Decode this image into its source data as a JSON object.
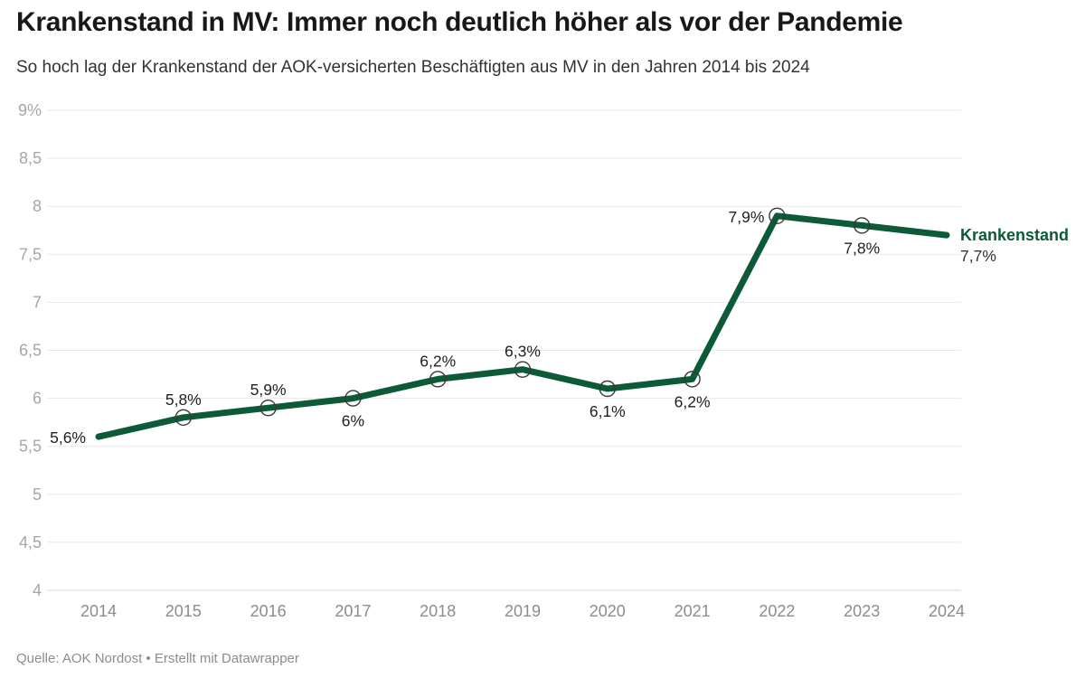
{
  "header": {
    "title": "Krankenstand in MV: Immer noch deutlich höher als vor der Pandemie",
    "subtitle": "So hoch lag der Krankenstand der AOK-versicherten Beschäftigten aus MV in den Jahren 2014 bis 2024"
  },
  "footer": {
    "source": "Quelle: AOK Nordost • Erstellt mit Datawrapper"
  },
  "chart_data": {
    "type": "line",
    "title": "Krankenstand in MV: Immer noch deutlich höher als vor der Pandemie",
    "subtitle": "So hoch lag der Krankenstand der AOK-versicherten Beschäftigten aus MV in den Jahren 2014 bis 2024",
    "categories": [
      "2014",
      "2015",
      "2016",
      "2017",
      "2018",
      "2019",
      "2020",
      "2021",
      "2022",
      "2023",
      "2024"
    ],
    "series": [
      {
        "name": "Krankenstand",
        "values": [
          5.6,
          5.8,
          5.9,
          6.0,
          6.2,
          6.3,
          6.1,
          6.2,
          7.9,
          7.8,
          7.7
        ],
        "labels": [
          "5,6%",
          "5,8%",
          "5,9%",
          "6%",
          "6,2%",
          "6,3%",
          "6,1%",
          "6,2%",
          "7,9%",
          "7,8%",
          "7,7%"
        ],
        "label_placements": [
          "left",
          "above",
          "above",
          "below",
          "above",
          "above",
          "below",
          "below",
          "left",
          "below",
          "end"
        ],
        "color": "#0d5a38"
      }
    ],
    "markers": {
      "style": "open-circle",
      "on_categories": [
        "2015",
        "2016",
        "2017",
        "2018",
        "2019",
        "2020",
        "2021",
        "2022",
        "2023"
      ]
    },
    "xlabel": "",
    "ylabel": "",
    "ylim": [
      4,
      9
    ],
    "grid": true,
    "legend_position": "end-of-line-right",
    "y_axis": {
      "ticks": [
        {
          "value": 9,
          "label": "9%"
        },
        {
          "value": 8.5,
          "label": "8,5"
        },
        {
          "value": 8,
          "label": "8"
        },
        {
          "value": 7.5,
          "label": "7,5"
        },
        {
          "value": 7,
          "label": "7"
        },
        {
          "value": 6.5,
          "label": "6,5"
        },
        {
          "value": 6,
          "label": "6"
        },
        {
          "value": 5.5,
          "label": "5,5"
        },
        {
          "value": 5,
          "label": "5"
        },
        {
          "value": 4.5,
          "label": "4,5"
        },
        {
          "value": 4,
          "label": "4"
        }
      ]
    },
    "colors": {
      "line": "#0d5a38",
      "marker_stroke": "#383838",
      "grid": "#e8e8e8",
      "baseline": "#d9d9d9",
      "y_tick_label": "#a6a6a6",
      "x_tick_label": "#8c8c8c",
      "data_label": "#1f1f1f",
      "end_value_label": "#333333",
      "title": "#181818",
      "subtitle": "#333333",
      "source": "#8c8c8c",
      "background": "#ffffff"
    }
  }
}
